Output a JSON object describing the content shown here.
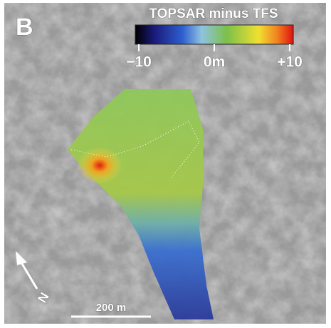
{
  "panel_label": "B",
  "colorbar": {
    "title": "TOPSAR minus TFS",
    "range": [
      -10,
      10
    ],
    "ticks": [
      {
        "value": -10,
        "label": "−10"
      },
      {
        "value": 0,
        "label": "0m"
      },
      {
        "value": 10,
        "label": "+10"
      }
    ]
  },
  "scale_bar": {
    "label": "200 m"
  },
  "north_arrow": {
    "label": "N"
  }
}
